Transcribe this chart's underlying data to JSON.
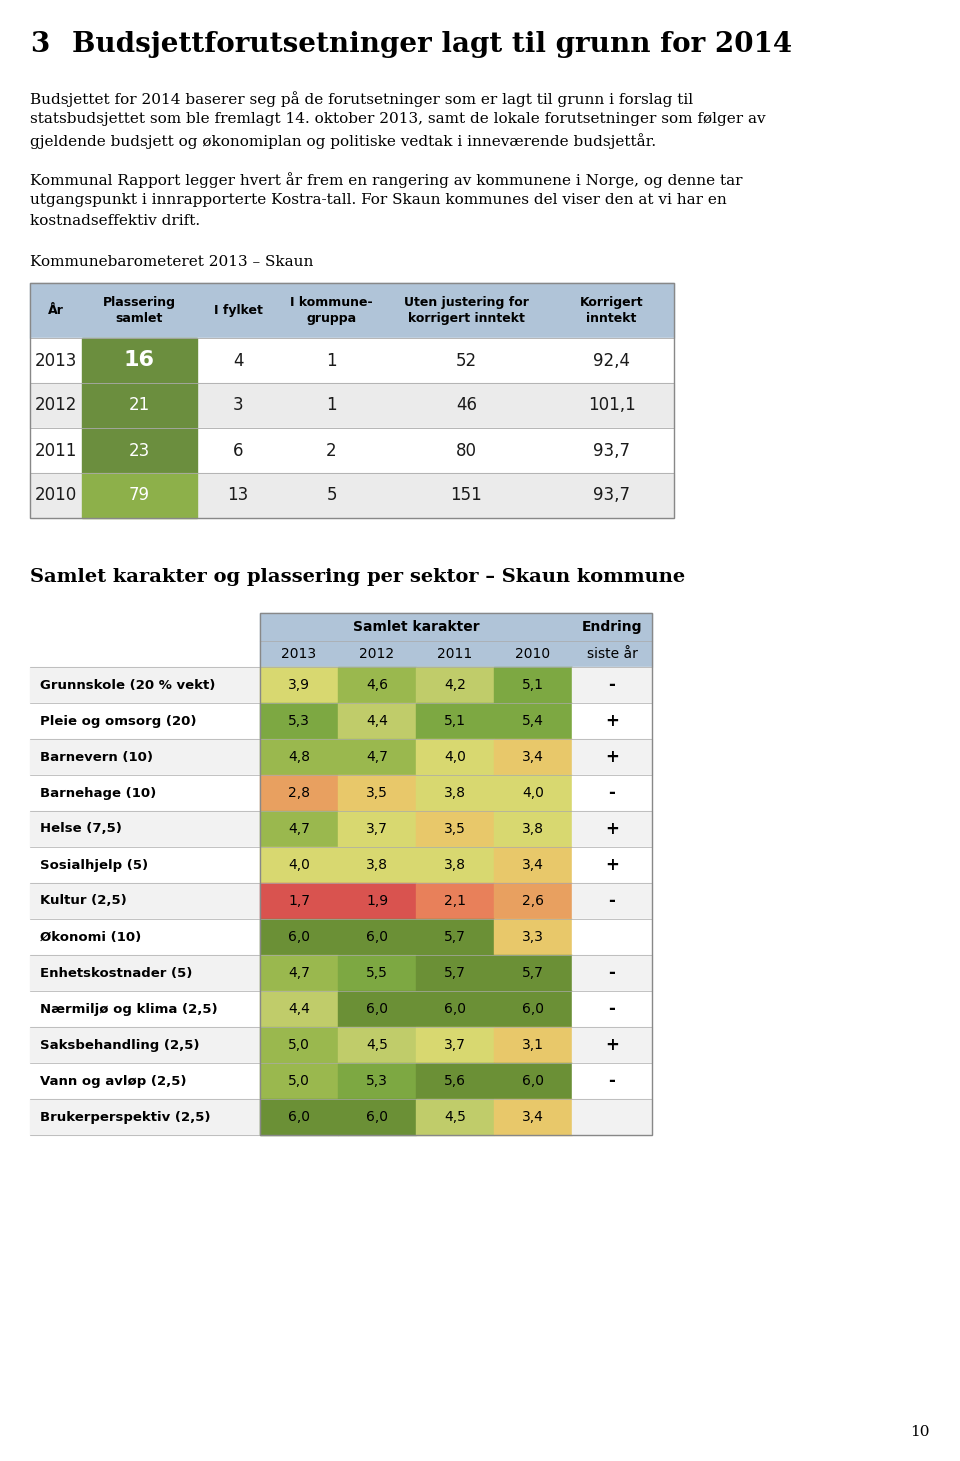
{
  "title_num": "3",
  "title_text": "Budsjettforutsetninger lagt til grunn for 2014",
  "para1_lines": [
    "Budsjettet for 2014 baserer seg på de forutsetninger som er lagt til grunn i forslag til",
    "statsbudsjettet som ble fremlagt 14. oktober 2013, samt de lokale forutsetninger som følger av",
    "gjeldende budsjett og økonomiplan og politiske vedtak i inneværende budsjettår."
  ],
  "para2_lines": [
    "Kommunal Rapport legger hvert år frem en rangering av kommunene i Norge, og denne tar",
    "utgangspunkt i innrapporterte Kostra-tall. For Skaun kommunes del viser den at vi har en",
    "kostnadseffektiv drift."
  ],
  "subtitle1": "Kommunebarometeret 2013 – Skaun",
  "table1_headers": [
    "År",
    "Plassering\nsamlet",
    "I fylket",
    "I kommune-\ngruppa",
    "Uten justering for\nkorrigert inntekt",
    "Korrigert\ninntekt"
  ],
  "table1_data": [
    [
      "2013",
      "16",
      "4",
      "1",
      "52",
      "92,4"
    ],
    [
      "2012",
      "21",
      "3",
      "1",
      "46",
      "101,1"
    ],
    [
      "2011",
      "23",
      "6",
      "2",
      "80",
      "93,7"
    ],
    [
      "2010",
      "79",
      "13",
      "5",
      "151",
      "93,7"
    ]
  ],
  "table1_plassering_colors": [
    "#6b8e3e",
    "#6b8e3e",
    "#6b8e3e",
    "#8db04a"
  ],
  "table1_header_bg": "#b0c4d8",
  "table1_row_bg": [
    "#ffffff",
    "#ebebeb",
    "#ffffff",
    "#ebebeb"
  ],
  "subtitle2": "Samlet karakter og plassering per sektor – Skaun kommune",
  "table2_row_labels": [
    "Grunnskole (20 % vekt)",
    "Pleie og omsorg (20)",
    "Barnevern (10)",
    "Barnehage (10)",
    "Helse (7,5)",
    "Sosialhjelp (5)",
    "Kultur (2,5)",
    "Økonomi (10)",
    "Enhetskostnader (5)",
    "Nærmiljø og klima (2,5)",
    "Saksbehandling (2,5)",
    "Vann og avløp (2,5)",
    "Brukerperspektiv (2,5)"
  ],
  "table2_col_headers": [
    "2013",
    "2012",
    "2011",
    "2010"
  ],
  "table2_data": [
    [
      3.9,
      4.6,
      4.2,
      5.1
    ],
    [
      5.3,
      4.4,
      5.1,
      5.4
    ],
    [
      4.8,
      4.7,
      4.0,
      3.4
    ],
    [
      2.8,
      3.5,
      3.8,
      4.0
    ],
    [
      4.7,
      3.7,
      3.5,
      3.8
    ],
    [
      4.0,
      3.8,
      3.8,
      3.4
    ],
    [
      1.7,
      1.9,
      2.1,
      2.6
    ],
    [
      6.0,
      6.0,
      5.7,
      3.3
    ],
    [
      4.7,
      5.5,
      5.7,
      5.7
    ],
    [
      4.4,
      6.0,
      6.0,
      6.0
    ],
    [
      5.0,
      4.5,
      3.7,
      3.1
    ],
    [
      5.0,
      5.3,
      5.6,
      6.0
    ],
    [
      6.0,
      6.0,
      4.5,
      3.4
    ]
  ],
  "table2_endring": [
    "-",
    "+",
    "+",
    "-",
    "+",
    "+",
    "-",
    "",
    "-",
    "-",
    "+",
    "-",
    ""
  ],
  "table2_row_bg": [
    "#f2f2f2",
    "#ffffff",
    "#f2f2f2",
    "#ffffff",
    "#f2f2f2",
    "#ffffff",
    "#f2f2f2",
    "#ffffff",
    "#f2f2f2",
    "#ffffff",
    "#f2f2f2",
    "#ffffff",
    "#f2f2f2"
  ],
  "table2_header_bg": "#b0c4d8",
  "page_number": "10",
  "bg_color": "#ffffff"
}
